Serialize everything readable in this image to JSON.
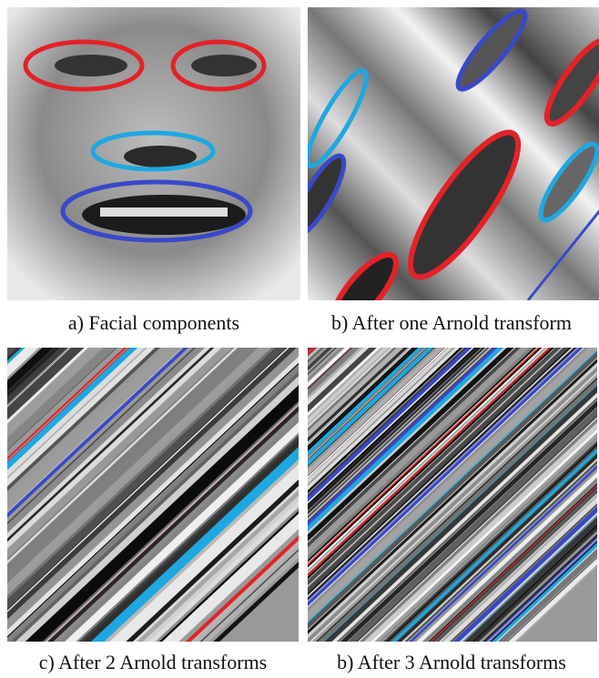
{
  "figure": {
    "panels": [
      {
        "caption": "a) Facial components"
      },
      {
        "caption": "b) After one Arnold transform"
      },
      {
        "caption": "c) After 2 Arnold transforms"
      },
      {
        "caption": "b) After 3 Arnold transforms"
      }
    ]
  }
}
